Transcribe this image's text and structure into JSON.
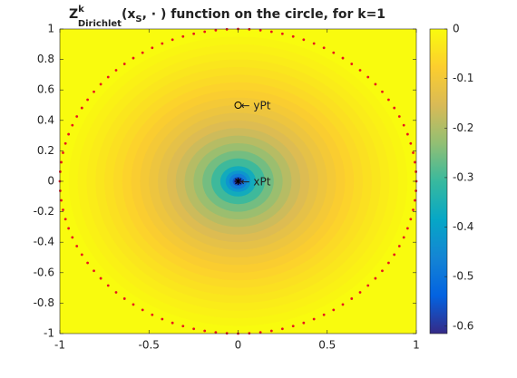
{
  "chart_data": {
    "type": "radial-field",
    "title": [
      "Z",
      "k",
      "Dirichlet",
      "(x",
      "S",
      ", · ) function on the circle, for k=1"
    ],
    "r": [
      1,
      0.95,
      0.9,
      0.85,
      0.8,
      0.75,
      0.7,
      0.65,
      0.6,
      0.55,
      0.5,
      0.45,
      0.4,
      0.35,
      0.3,
      0.25,
      0.2,
      0.15,
      0.1,
      0.07,
      0.05,
      0.03,
      0.02
    ],
    "values": [
      0,
      -0.008,
      -0.017,
      -0.026,
      -0.036,
      -0.046,
      -0.057,
      -0.069,
      -0.081,
      -0.095,
      -0.11,
      -0.127,
      -0.146,
      -0.167,
      -0.192,
      -0.221,
      -0.256,
      -0.302,
      -0.366,
      -0.423,
      -0.477,
      -0.558,
      -0.61
    ],
    "boundary_color": "#e8141c",
    "points": [
      {
        "label": "← xPt",
        "x": 0,
        "y": 0,
        "marker": "star"
      },
      {
        "label": "← yPt",
        "x": 0,
        "y": 0.5,
        "marker": "circle"
      }
    ],
    "xlim": [
      -1,
      1
    ],
    "xticks": [
      -1,
      -0.5,
      0,
      0.5,
      1
    ],
    "ylim": [
      -1,
      1
    ],
    "yticks": [
      -1,
      -0.8,
      -0.6,
      -0.4,
      -0.2,
      0,
      0.2,
      0.4,
      0.6,
      0.8,
      1
    ],
    "clim": [
      -0.615,
      0
    ],
    "cticks": [
      -0.6,
      -0.5,
      -0.4,
      -0.3,
      -0.2,
      -0.1,
      0
    ],
    "colormap": [
      "#352a87",
      "#0363e1",
      "#1485d4",
      "#06a7c6",
      "#38b99e",
      "#92bf73",
      "#d9ba56",
      "#fcce2e",
      "#f9fb0e"
    ]
  }
}
